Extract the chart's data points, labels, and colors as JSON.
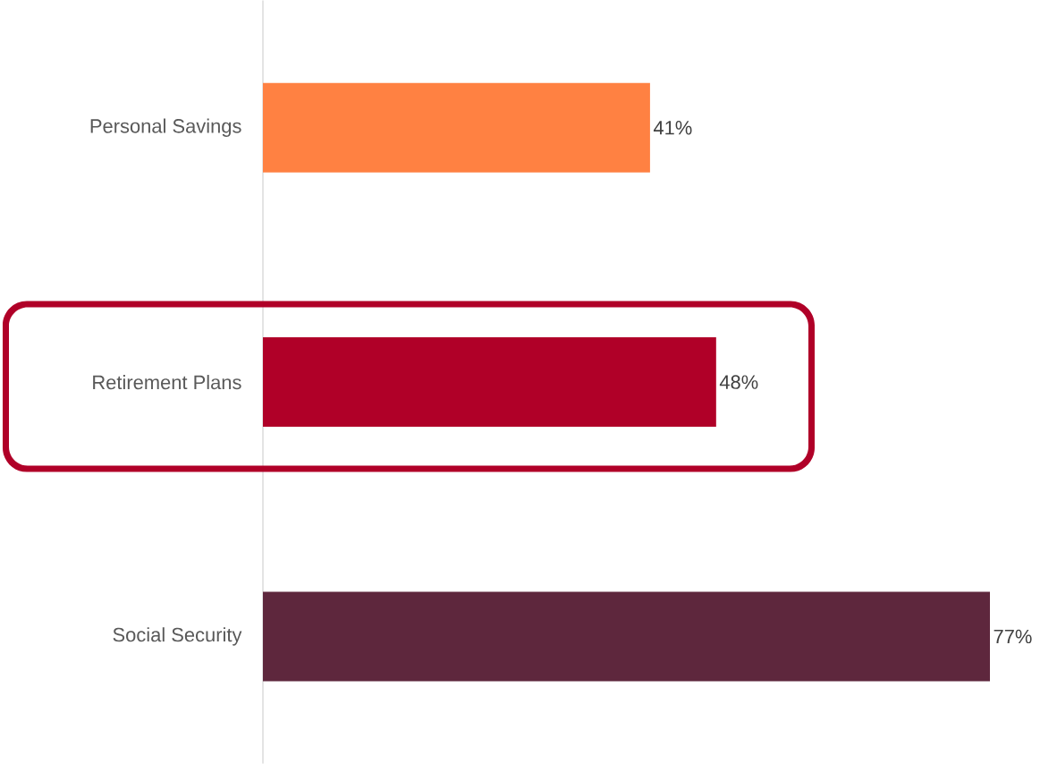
{
  "chart_data": {
    "type": "bar",
    "orientation": "horizontal",
    "categories": [
      "Personal Savings",
      "Retirement Plans",
      "Social Security"
    ],
    "values": [
      41,
      48,
      77
    ],
    "colors": [
      "#ff8142",
      "#b00028",
      "#5e273d"
    ],
    "value_labels": [
      "41%",
      "48%",
      "77%"
    ]
  }
}
